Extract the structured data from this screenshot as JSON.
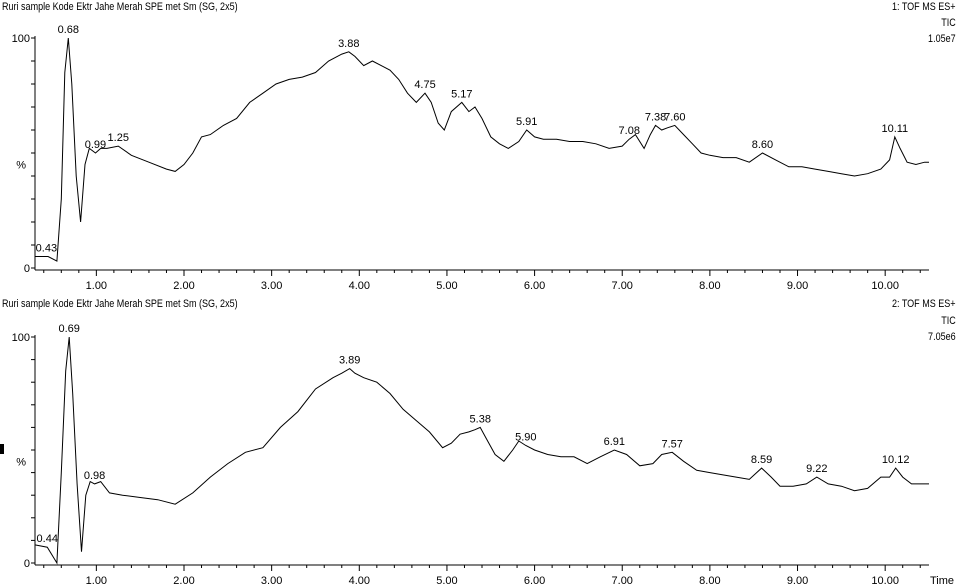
{
  "chart_data": [
    {
      "type": "line",
      "title": "Ruri  sample Kode Ektr Jahe Merah SPE met Sm (SG, 2x5)",
      "detector": "1: TOF MS ES+",
      "trace": "TIC",
      "intensity": "1.05e7",
      "ylabel": "%",
      "y_top_label": "100",
      "y_zero_label": "0",
      "xlim": [
        0.3,
        10.5
      ],
      "ylim": [
        0,
        100
      ],
      "xticks": [
        "1.00",
        "2.00",
        "3.00",
        "4.00",
        "5.00",
        "6.00",
        "7.00",
        "8.00",
        "9.00",
        "10.00"
      ],
      "peak_labels": [
        {
          "x": 0.43,
          "text": "0.43"
        },
        {
          "x": 0.68,
          "text": "0.68"
        },
        {
          "x": 0.99,
          "text": "0.99"
        },
        {
          "x": 1.25,
          "text": "1.25"
        },
        {
          "x": 3.88,
          "text": "3.88"
        },
        {
          "x": 4.75,
          "text": "4.75"
        },
        {
          "x": 5.17,
          "text": "5.17"
        },
        {
          "x": 5.91,
          "text": "5.91"
        },
        {
          "x": 7.08,
          "text": "7.08"
        },
        {
          "x": 7.38,
          "text": "7.38"
        },
        {
          "x": 7.6,
          "text": "7.60"
        },
        {
          "x": 8.6,
          "text": "8.60"
        },
        {
          "x": 10.11,
          "text": "10.11"
        }
      ],
      "x": [
        0.3,
        0.45,
        0.55,
        0.6,
        0.64,
        0.68,
        0.72,
        0.77,
        0.82,
        0.87,
        0.92,
        0.99,
        1.05,
        1.12,
        1.25,
        1.4,
        1.6,
        1.8,
        1.9,
        2.0,
        2.1,
        2.2,
        2.3,
        2.45,
        2.6,
        2.75,
        2.9,
        3.05,
        3.2,
        3.35,
        3.5,
        3.65,
        3.8,
        3.88,
        3.95,
        4.05,
        4.15,
        4.25,
        4.35,
        4.45,
        4.55,
        4.65,
        4.75,
        4.82,
        4.9,
        4.97,
        5.05,
        5.17,
        5.25,
        5.32,
        5.4,
        5.5,
        5.6,
        5.7,
        5.82,
        5.91,
        6.0,
        6.1,
        6.25,
        6.4,
        6.55,
        6.7,
        6.85,
        7.0,
        7.08,
        7.15,
        7.25,
        7.32,
        7.38,
        7.45,
        7.52,
        7.6,
        7.7,
        7.8,
        7.9,
        8.0,
        8.15,
        8.3,
        8.45,
        8.6,
        8.75,
        8.9,
        9.05,
        9.2,
        9.35,
        9.5,
        9.65,
        9.8,
        9.95,
        10.05,
        10.11,
        10.17,
        10.25,
        10.35,
        10.45,
        10.5
      ],
      "y": [
        5,
        5,
        3,
        30,
        85,
        100,
        80,
        40,
        20,
        45,
        52,
        50,
        52,
        52,
        53,
        49,
        46,
        43,
        42,
        45,
        50,
        57,
        58,
        62,
        65,
        72,
        76,
        80,
        82,
        83,
        85,
        90,
        93,
        94,
        92,
        88,
        90,
        88,
        86,
        82,
        76,
        72,
        76,
        72,
        63,
        60,
        68,
        72,
        68,
        70,
        65,
        57,
        54,
        52,
        55,
        60,
        57,
        56,
        56,
        55,
        55,
        54,
        52,
        53,
        56,
        58,
        52,
        58,
        62,
        60,
        61,
        62,
        58,
        54,
        50,
        49,
        48,
        48,
        46,
        50,
        47,
        44,
        44,
        43,
        42,
        41,
        40,
        41,
        43,
        47,
        57,
        52,
        46,
        45,
        46,
        46
      ]
    },
    {
      "type": "line",
      "title": "Ruri  sample Kode Ektr Jahe Merah SPE met Sm (SG, 2x5)",
      "detector": "2: TOF MS ES+",
      "trace": "TIC",
      "intensity": "7.05e6",
      "ylabel": "%",
      "y_top_label": "100",
      "y_zero_label": "0",
      "xlabel": "Time",
      "xlim": [
        0.3,
        10.5
      ],
      "ylim": [
        0,
        100
      ],
      "xticks": [
        "1.00",
        "2.00",
        "3.00",
        "4.00",
        "5.00",
        "6.00",
        "7.00",
        "8.00",
        "9.00",
        "10.00"
      ],
      "peak_labels": [
        {
          "x": 0.44,
          "text": "0.44"
        },
        {
          "x": 0.69,
          "text": "0.69"
        },
        {
          "x": 0.98,
          "text": "0.98"
        },
        {
          "x": 3.89,
          "text": "3.89"
        },
        {
          "x": 5.38,
          "text": "5.38"
        },
        {
          "x": 5.9,
          "text": "5.90"
        },
        {
          "x": 6.91,
          "text": "6.91"
        },
        {
          "x": 7.57,
          "text": "7.57"
        },
        {
          "x": 8.59,
          "text": "8.59"
        },
        {
          "x": 9.22,
          "text": "9.22"
        },
        {
          "x": 10.12,
          "text": "10.12"
        }
      ],
      "x": [
        0.3,
        0.44,
        0.55,
        0.6,
        0.65,
        0.69,
        0.73,
        0.78,
        0.83,
        0.88,
        0.93,
        0.98,
        1.05,
        1.15,
        1.3,
        1.5,
        1.7,
        1.9,
        2.1,
        2.3,
        2.5,
        2.7,
        2.9,
        3.1,
        3.3,
        3.5,
        3.7,
        3.8,
        3.89,
        3.95,
        4.05,
        4.2,
        4.35,
        4.5,
        4.65,
        4.8,
        4.95,
        5.05,
        5.15,
        5.25,
        5.32,
        5.38,
        5.45,
        5.55,
        5.65,
        5.75,
        5.82,
        5.9,
        6.0,
        6.15,
        6.3,
        6.45,
        6.6,
        6.75,
        6.91,
        7.05,
        7.2,
        7.35,
        7.45,
        7.57,
        7.7,
        7.85,
        8.0,
        8.15,
        8.3,
        8.45,
        8.59,
        8.7,
        8.8,
        8.95,
        9.1,
        9.22,
        9.35,
        9.5,
        9.65,
        9.8,
        9.95,
        10.05,
        10.12,
        10.2,
        10.3,
        10.4,
        10.5
      ],
      "y": [
        8,
        7,
        0,
        40,
        85,
        100,
        75,
        35,
        5,
        30,
        36,
        35,
        36,
        31,
        30,
        29,
        28,
        26,
        31,
        38,
        44,
        49,
        51,
        60,
        67,
        77,
        82,
        84,
        86,
        84,
        82,
        80,
        75,
        68,
        63,
        58,
        51,
        53,
        57,
        58,
        59,
        60,
        55,
        48,
        45,
        50,
        54,
        52,
        50,
        48,
        47,
        47,
        44,
        47,
        50,
        48,
        43,
        44,
        48,
        49,
        45,
        41,
        40,
        39,
        38,
        37,
        42,
        38,
        34,
        34,
        35,
        38,
        35,
        34,
        32,
        33,
        38,
        38,
        42,
        38,
        35,
        35,
        35
      ]
    }
  ]
}
